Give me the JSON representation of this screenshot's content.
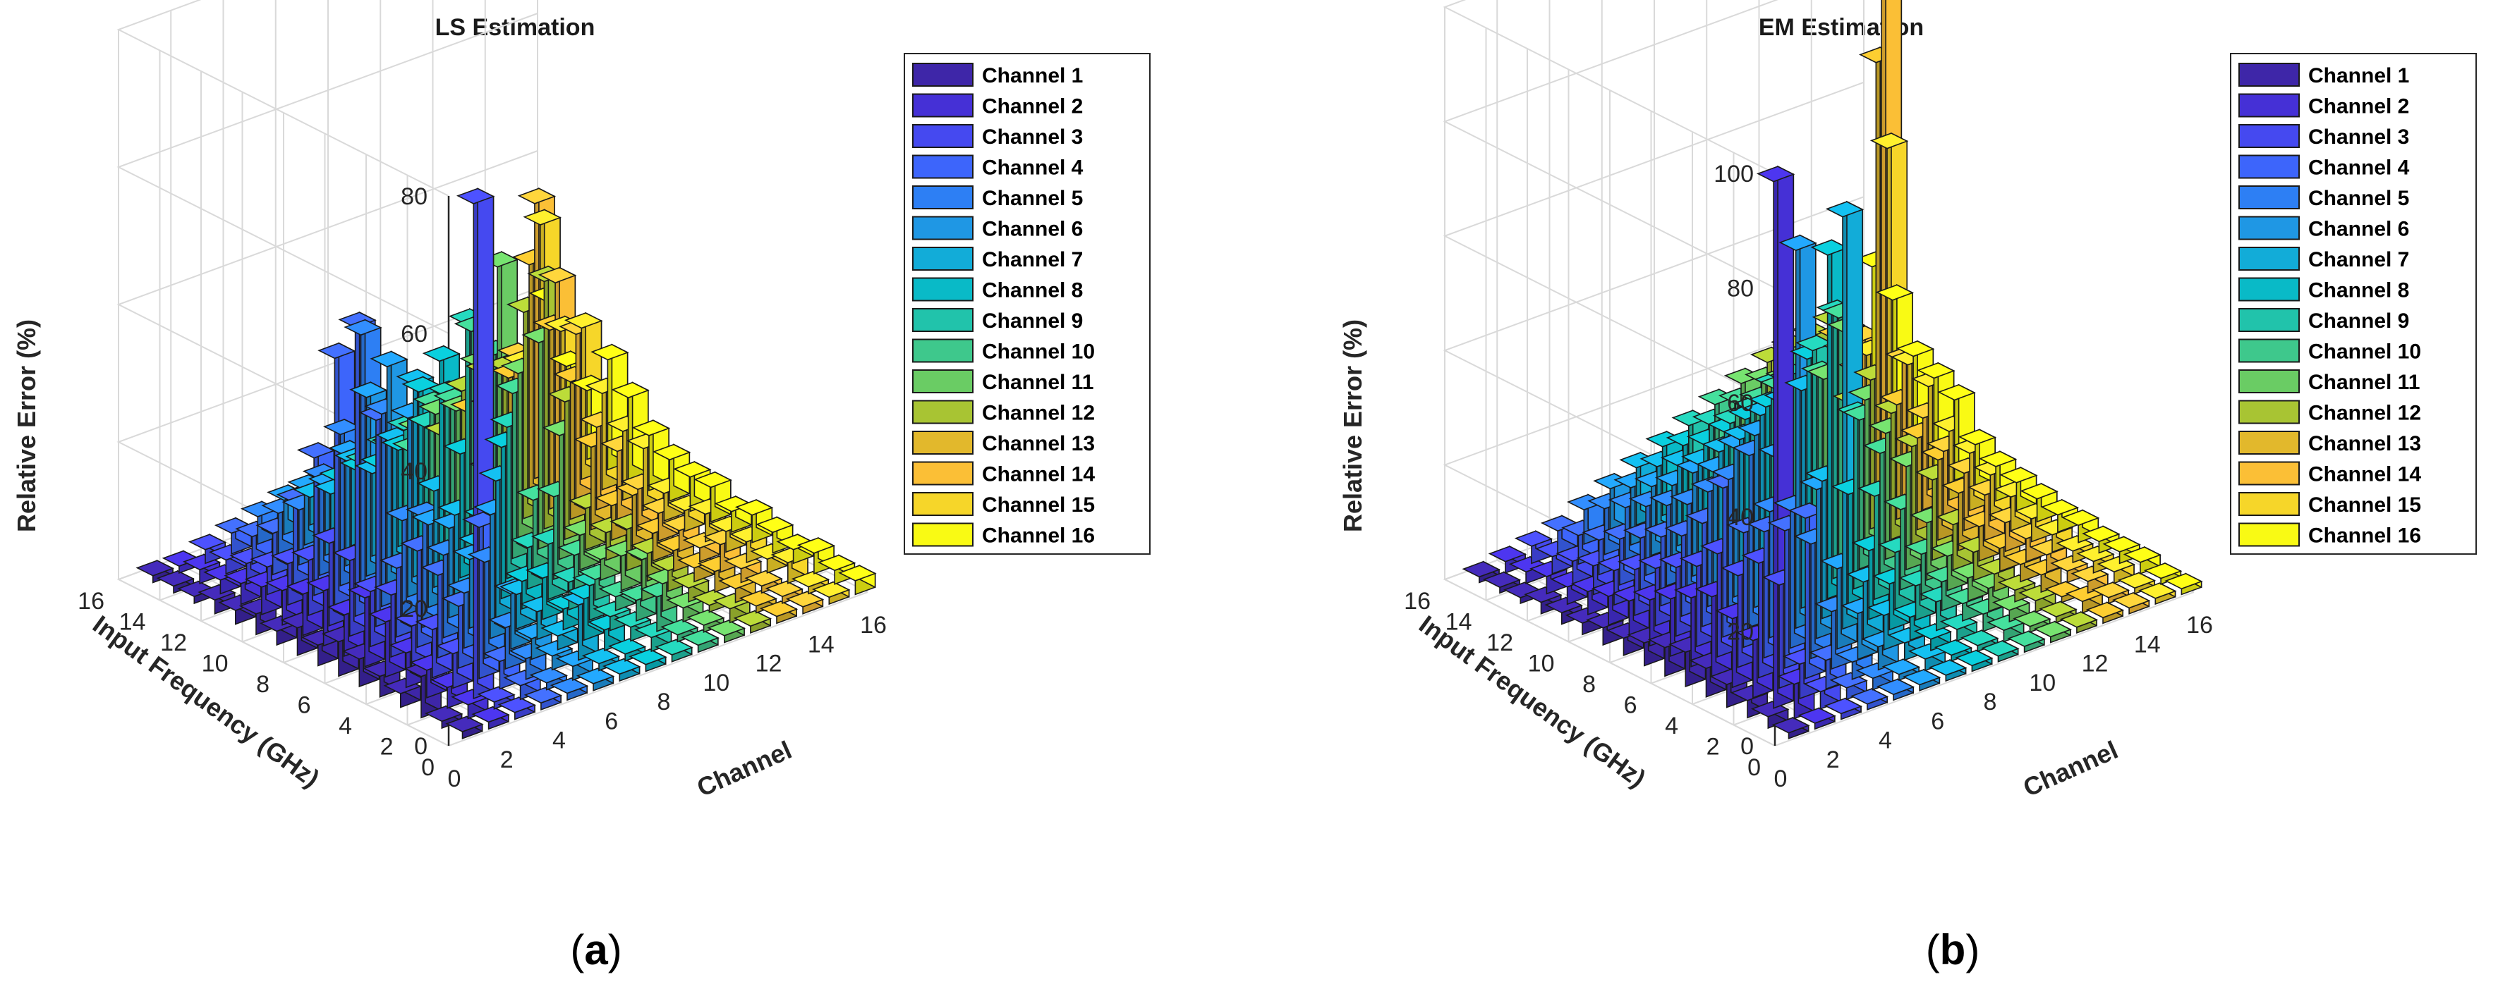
{
  "chart_data": [
    {
      "type": "bar3d",
      "title": "LS Estimation",
      "panel_label": {
        "open": "(",
        "letter": "a",
        "close": ")"
      },
      "xlabel": "Channel",
      "ylabel": "Input Frequency (GHz)",
      "zlabel": "Relative Error (%)",
      "x_ticks": [
        "0",
        "2",
        "4",
        "6",
        "8",
        "10",
        "12",
        "14",
        "16"
      ],
      "y_ticks": [
        "0",
        "2",
        "4",
        "6",
        "8",
        "10",
        "12",
        "14",
        "16"
      ],
      "z_ticks": [
        "0",
        "20",
        "40",
        "60",
        "80"
      ],
      "zlim": [
        0,
        80
      ],
      "grid": true,
      "legend": [
        "Channel 1",
        "Channel 2",
        "Channel 3",
        "Channel 4",
        "Channel 5",
        "Channel 6",
        "Channel 7",
        "Channel 8",
        "Channel 9",
        "Channel 10",
        "Channel 11",
        "Channel 12",
        "Channel 13",
        "Channel 14",
        "Channel 15",
        "Channel 16"
      ],
      "series_colors": [
        "#3e26a8",
        "#4530d6",
        "#4549f0",
        "#3d65fb",
        "#2d7ff4",
        "#1f97e4",
        "#12acd8",
        "#09bac7",
        "#21c3ab",
        "#3ec88c",
        "#6acc64",
        "#a8c433",
        "#e2b82c",
        "#fbbf36",
        "#f6d629",
        "#f9fa14"
      ],
      "values": [
        [
          1,
          1,
          1,
          1,
          1,
          1,
          1,
          1,
          1,
          1,
          1,
          1,
          1,
          1,
          1,
          2
        ],
        [
          1,
          2,
          1,
          2,
          1,
          2,
          1,
          1,
          2,
          1,
          1,
          2,
          1,
          1,
          1,
          2
        ],
        [
          6,
          3,
          72,
          4,
          3,
          2,
          8,
          3,
          2,
          5,
          2,
          1,
          2,
          1,
          3,
          3
        ],
        [
          2,
          4,
          5,
          22,
          6,
          3,
          2,
          6,
          2,
          3,
          4,
          2,
          3,
          2,
          2,
          2
        ],
        [
          3,
          5,
          7,
          9,
          14,
          8,
          4,
          3,
          5,
          2,
          6,
          3,
          2,
          4,
          3,
          3
        ],
        [
          4,
          8,
          6,
          12,
          8,
          18,
          5,
          6,
          4,
          3,
          5,
          4,
          3,
          2,
          3,
          4
        ],
        [
          5,
          10,
          9,
          14,
          12,
          10,
          20,
          4,
          8,
          5,
          3,
          6,
          4,
          3,
          4,
          3
        ],
        [
          3,
          6,
          8,
          10,
          16,
          13,
          9,
          22,
          6,
          12,
          5,
          4,
          8,
          4,
          3,
          5
        ],
        [
          4,
          8,
          11,
          30,
          14,
          12,
          12,
          10,
          22,
          10,
          18,
          6,
          5,
          6,
          4,
          5
        ],
        [
          2,
          6,
          12,
          42,
          28,
          26,
          14,
          18,
          14,
          24,
          30,
          20,
          12,
          10,
          9,
          6
        ],
        [
          3,
          5,
          8,
          36,
          38,
          32,
          28,
          30,
          34,
          28,
          24,
          36,
          20,
          12,
          10,
          8
        ],
        [
          2,
          4,
          6,
          20,
          22,
          26,
          18,
          24,
          22,
          30,
          38,
          30,
          26,
          24,
          14,
          12
        ],
        [
          2,
          3,
          4,
          12,
          14,
          16,
          12,
          14,
          16,
          18,
          22,
          20,
          34,
          30,
          22,
          16
        ],
        [
          1,
          2,
          3,
          6,
          8,
          10,
          12,
          10,
          14,
          16,
          14,
          18,
          16,
          40,
          20,
          10
        ],
        [
          1,
          2,
          2,
          4,
          6,
          8,
          6,
          8,
          10,
          8,
          12,
          14,
          10,
          16,
          34,
          12
        ],
        [
          1,
          1,
          2,
          3,
          4,
          5,
          4,
          5,
          6,
          7,
          8,
          6,
          8,
          10,
          12,
          20
        ]
      ]
    },
    {
      "type": "bar3d",
      "title": "EM Estimation",
      "panel_label": {
        "open": "(",
        "letter": "b",
        "close": ")"
      },
      "xlabel": "Channel",
      "ylabel": "Input Frequency (GHz)",
      "zlabel": "Relative Error (%)",
      "x_ticks": [
        "0",
        "2",
        "4",
        "6",
        "8",
        "10",
        "12",
        "14",
        "16"
      ],
      "y_ticks": [
        "0",
        "2",
        "4",
        "6",
        "8",
        "10",
        "12",
        "14",
        "16"
      ],
      "z_ticks": [
        "0",
        "20",
        "40",
        "60",
        "80",
        "100"
      ],
      "zlim": [
        0,
        100
      ],
      "grid": true,
      "legend": [
        "Channel 1",
        "Channel 2",
        "Channel 3",
        "Channel 4",
        "Channel 5",
        "Channel 6",
        "Channel 7",
        "Channel 8",
        "Channel 9",
        "Channel 10",
        "Channel 11",
        "Channel 12",
        "Channel 13",
        "Channel 14",
        "Channel 15",
        "Channel 16"
      ],
      "series_colors": [
        "#3e26a8",
        "#4530d6",
        "#4549f0",
        "#3d65fb",
        "#2d7ff4",
        "#1f97e4",
        "#12acd8",
        "#09bac7",
        "#21c3ab",
        "#3ec88c",
        "#6acc64",
        "#a8c433",
        "#e2b82c",
        "#fbbf36",
        "#f6d629",
        "#f9fa14"
      ],
      "values": [
        [
          1,
          1,
          1,
          1,
          1,
          1,
          1,
          1,
          1,
          1,
          1,
          1,
          1,
          1,
          1,
          1
        ],
        [
          2,
          6,
          3,
          2,
          2,
          1,
          2,
          1,
          1,
          2,
          1,
          1,
          2,
          1,
          1,
          1
        ],
        [
          3,
          92,
          6,
          5,
          3,
          4,
          3,
          2,
          2,
          3,
          2,
          2,
          1,
          2,
          2,
          2
        ],
        [
          4,
          10,
          18,
          28,
          10,
          8,
          6,
          4,
          5,
          3,
          4,
          2,
          3,
          2,
          2,
          2
        ],
        [
          5,
          12,
          20,
          24,
          20,
          14,
          10,
          8,
          6,
          5,
          4,
          3,
          3,
          3,
          2,
          2
        ],
        [
          6,
          14,
          16,
          22,
          24,
          26,
          72,
          12,
          10,
          8,
          6,
          5,
          4,
          4,
          3,
          3
        ],
        [
          5,
          12,
          18,
          20,
          22,
          66,
          24,
          20,
          18,
          14,
          10,
          8,
          6,
          5,
          4,
          3
        ],
        [
          4,
          10,
          14,
          26,
          30,
          28,
          38,
          60,
          30,
          22,
          18,
          14,
          10,
          8,
          6,
          4
        ],
        [
          3,
          8,
          12,
          18,
          24,
          30,
          34,
          40,
          46,
          26,
          22,
          18,
          14,
          10,
          8,
          5
        ],
        [
          3,
          6,
          10,
          14,
          20,
          26,
          30,
          34,
          38,
          42,
          26,
          22,
          16,
          12,
          10,
          6
        ],
        [
          2,
          5,
          8,
          12,
          16,
          20,
          24,
          28,
          32,
          30,
          36,
          26,
          20,
          16,
          12,
          8
        ],
        [
          2,
          4,
          6,
          10,
          14,
          18,
          20,
          24,
          28,
          30,
          26,
          20,
          78,
          24,
          18,
          14
        ],
        [
          2,
          3,
          5,
          8,
          12,
          14,
          16,
          20,
          22,
          24,
          28,
          32,
          22,
          86,
          20,
          16
        ],
        [
          1,
          3,
          4,
          6,
          10,
          12,
          14,
          16,
          18,
          20,
          22,
          28,
          26,
          24,
          56,
          18
        ],
        [
          1,
          2,
          3,
          5,
          8,
          10,
          12,
          14,
          16,
          18,
          20,
          24,
          22,
          20,
          18,
          26
        ],
        [
          1,
          2,
          3,
          4,
          6,
          8,
          10,
          12,
          14,
          16,
          18,
          20,
          18,
          16,
          14,
          30
        ]
      ]
    }
  ]
}
